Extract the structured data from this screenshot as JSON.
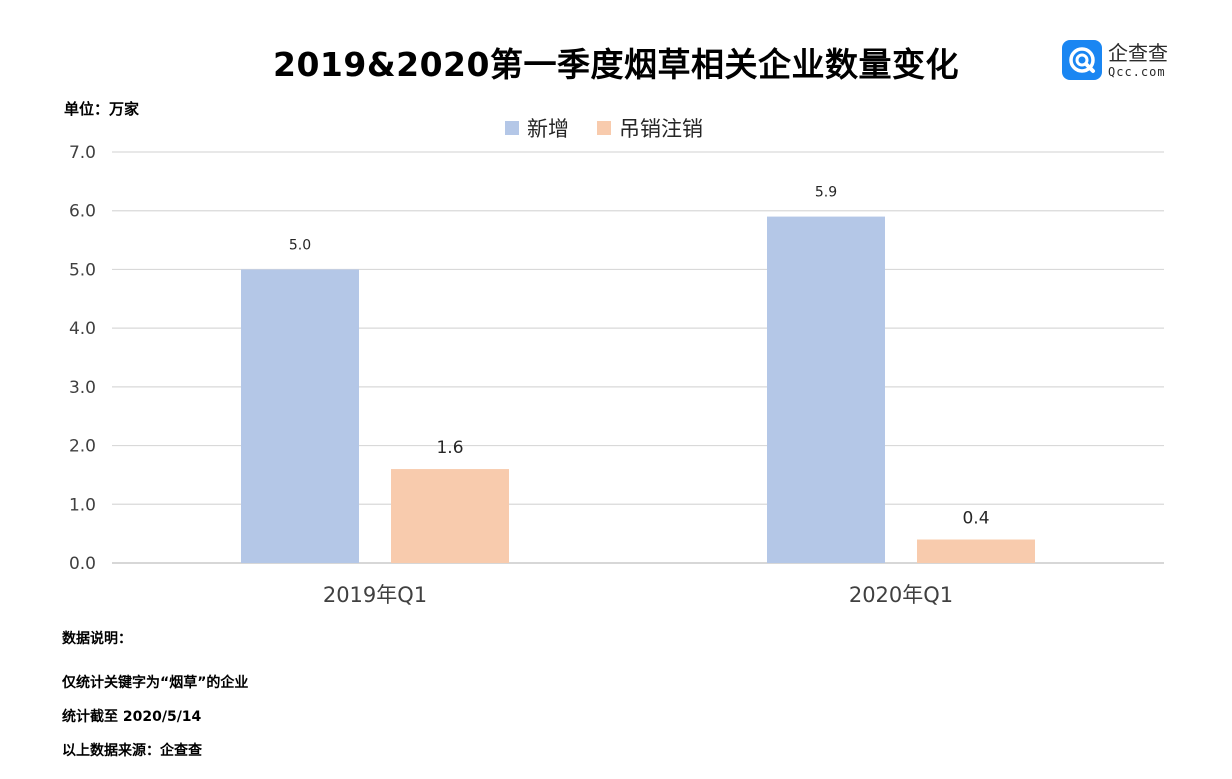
{
  "title": "2019&2020第一季度烟草相关企业数量变化",
  "unit_label": "单位：万家",
  "logo": {
    "name": "企查查",
    "url": "Qcc.com",
    "icon": "qcc-logo-icon",
    "color": "#1a86f2"
  },
  "notes": {
    "heading": "数据说明：",
    "line1": "仅统计关键字为“烟草”的企业",
    "line2": "统计截至 2020/5/14",
    "line3": "以上数据来源：企查查"
  },
  "chart_data": {
    "type": "bar",
    "categories": [
      "2019年Q1",
      "2020年Q1"
    ],
    "series": [
      {
        "name": "新增",
        "values": [
          5.0,
          5.9
        ],
        "labels": [
          "5.0",
          "5.9"
        ],
        "color": "#b4c7e7"
      },
      {
        "name": "吊销注销",
        "values": [
          1.6,
          0.4
        ],
        "labels": [
          "1.6",
          "0.4"
        ],
        "color": "#f8cbad"
      }
    ],
    "ylim": [
      0,
      7
    ],
    "yticks": [
      "0.0",
      "1.0",
      "2.0",
      "3.0",
      "4.0",
      "5.0",
      "6.0",
      "7.0"
    ],
    "grid": true,
    "legend_position": "top-center"
  }
}
